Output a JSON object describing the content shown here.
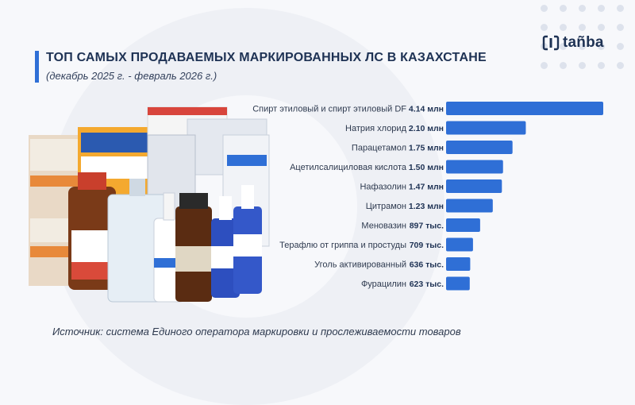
{
  "header": {
    "title": "ТОП САМЫХ ПРОДАВАЕМЫХ МАРКИРОВАННЫХ ЛС В КАЗАХСТАНЕ",
    "subtitle": "(декабрь 2025 г. - февраль 2026 г.)"
  },
  "logo": {
    "text": "tañba",
    "icon": "tanba-logo-icon"
  },
  "source": "Источник: система Единого оператора маркировки и прослеживаемости товаров",
  "colors": {
    "bar": "#2f6fd6",
    "title": "#1e3254",
    "accent": "#2f6fd6"
  },
  "chart_data": {
    "type": "bar",
    "orientation": "horizontal",
    "categories": [
      "Спирт этиловый и спирт этиловый DF",
      "Натрия хлорид",
      "Парацетамол",
      "Ацетилсалициловая кислота",
      "Нафазолин",
      "Цитрамон",
      "Меновазин",
      "Терафлю от гриппа и простуды",
      "Уголь активированный",
      "Фурацилин"
    ],
    "values": [
      4140000,
      2100000,
      1750000,
      1500000,
      1470000,
      1230000,
      897000,
      709000,
      636000,
      623000
    ],
    "value_labels": [
      "4.14 млн",
      "2.10 млн",
      "1.75 млн",
      "1.50 млн",
      "1.47 млн",
      "1.23 млн",
      "897 тыс.",
      "709 тыс.",
      "636 тыс.",
      "623 тыс."
    ],
    "title": "ТОП САМЫХ ПРОДАВАЕМЫХ МАРКИРОВАННЫХ ЛС В КАЗАХСТАНЕ",
    "xlabel": "",
    "ylabel": "",
    "grid": false
  }
}
